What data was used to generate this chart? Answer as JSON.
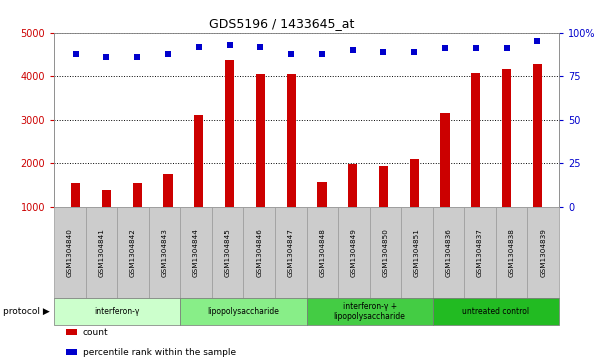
{
  "title": "GDS5196 / 1433645_at",
  "samples": [
    "GSM1304840",
    "GSM1304841",
    "GSM1304842",
    "GSM1304843",
    "GSM1304844",
    "GSM1304845",
    "GSM1304846",
    "GSM1304847",
    "GSM1304848",
    "GSM1304849",
    "GSM1304850",
    "GSM1304851",
    "GSM1304836",
    "GSM1304837",
    "GSM1304838",
    "GSM1304839"
  ],
  "counts": [
    1550,
    1380,
    1560,
    1750,
    3100,
    4380,
    4040,
    4060,
    1580,
    1980,
    1940,
    2100,
    3150,
    4070,
    4170,
    4290
  ],
  "percentiles": [
    88,
    86,
    86,
    88,
    92,
    93,
    92,
    88,
    88,
    90,
    89,
    89,
    91,
    91,
    91,
    95
  ],
  "ylim_left": [
    1000,
    5000
  ],
  "ylim_right": [
    0,
    100
  ],
  "yticks_left": [
    1000,
    2000,
    3000,
    4000,
    5000
  ],
  "yticks_right": [
    0,
    25,
    50,
    75,
    100
  ],
  "yticklabels_right": [
    "0",
    "25",
    "50",
    "75",
    "100%"
  ],
  "bar_color": "#cc0000",
  "dot_color": "#0000cc",
  "bg_color": "#ffffff",
  "tick_label_bg": "#cccccc",
  "protocol_groups": [
    {
      "label": "interferon-γ",
      "start": 0,
      "end": 3,
      "color": "#ccffcc"
    },
    {
      "label": "lipopolysaccharide",
      "start": 4,
      "end": 7,
      "color": "#88ee88"
    },
    {
      "label": "interferon-γ +\nlipopolysaccharide",
      "start": 8,
      "end": 11,
      "color": "#44cc44"
    },
    {
      "label": "untreated control",
      "start": 12,
      "end": 15,
      "color": "#22bb22"
    }
  ],
  "left_ylabel_color": "#cc0000",
  "right_ylabel_color": "#0000cc"
}
